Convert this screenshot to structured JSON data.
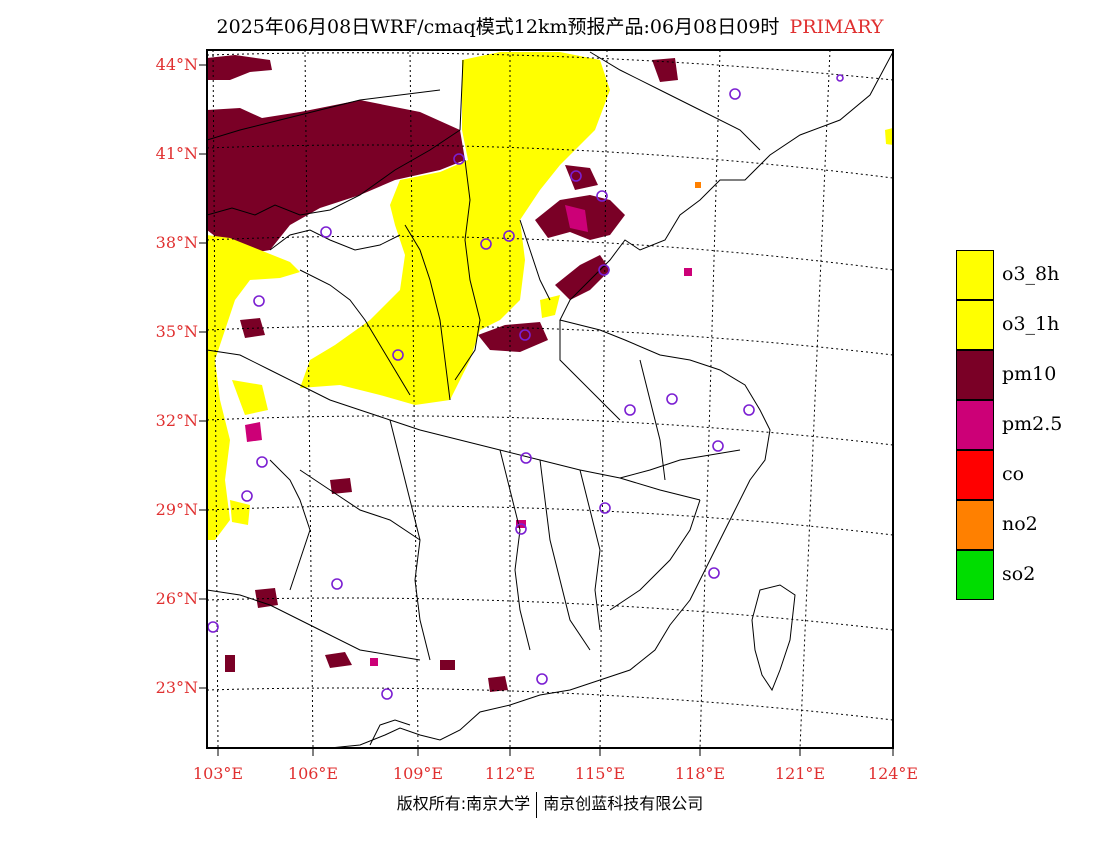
{
  "header": {
    "title": "2025年06月08日WRF/cmaq模式12km预报产品:06月08日09时",
    "tag": "PRIMARY"
  },
  "map": {
    "lat_labels": [
      "44°N",
      "41°N",
      "38°N",
      "35°N",
      "32°N",
      "29°N",
      "26°N",
      "23°N"
    ],
    "lon_labels": [
      "103°E",
      "106°E",
      "109°E",
      "112°E",
      "115°E",
      "118°E",
      "121°E",
      "124°E"
    ],
    "colors": {
      "frame": "#000000",
      "grid": "#000000",
      "boundary": "#000000",
      "station": "#7b1fd2"
    }
  },
  "legend": {
    "items": [
      {
        "label": "o3_8h",
        "color": "#ffff00"
      },
      {
        "label": "o3_1h",
        "color": "#ffff00"
      },
      {
        "label": "pm10",
        "color": "#7a0026"
      },
      {
        "label": "pm2.5",
        "color": "#cc0077"
      },
      {
        "label": "co",
        "color": "#ff0000"
      },
      {
        "label": "no2",
        "color": "#ff8000"
      },
      {
        "label": "so2",
        "color": "#00dd00"
      }
    ]
  },
  "footer": {
    "copyright_left": "版权所有:南京大学",
    "copyright_right": "南京创蓝科技有限公司"
  }
}
